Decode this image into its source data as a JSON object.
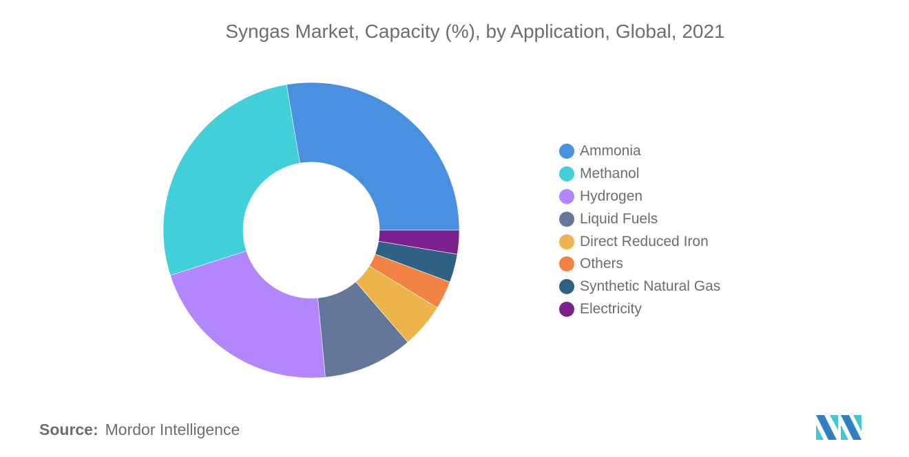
{
  "title": "Syngas Market, Capacity (%), by Application, Global, 2021",
  "source": {
    "label": "Source:",
    "value": "Mordor Intelligence"
  },
  "chart_data": {
    "type": "pie",
    "subtype": "donut",
    "title": "Syngas Market, Capacity (%), by Application, Global, 2021",
    "categories": [
      "Ammonia",
      "Methanol",
      "Hydrogen",
      "Liquid Fuels",
      "Direct Reduced Iron",
      "Others",
      "Synthetic Natural Gas",
      "Electricity"
    ],
    "values": [
      27.7,
      27.3,
      21.6,
      9.8,
      4.9,
      3.1,
      3.1,
      2.6
    ],
    "colors": [
      "#4a90e0",
      "#41d0da",
      "#b286fc",
      "#64779b",
      "#ecb44b",
      "#f28343",
      "#2e6184",
      "#7e1f8e"
    ],
    "legend_position": "right",
    "unit": "%"
  },
  "legend": {
    "items": [
      {
        "label": "Ammonia",
        "color": "#4a90e0"
      },
      {
        "label": "Methanol",
        "color": "#41d0da"
      },
      {
        "label": "Hydrogen",
        "color": "#b286fc"
      },
      {
        "label": "Liquid Fuels",
        "color": "#64779b"
      },
      {
        "label": "Direct Reduced Iron",
        "color": "#ecb44b"
      },
      {
        "label": "Others",
        "color": "#f28343"
      },
      {
        "label": "Synthetic Natural Gas",
        "color": "#2e6184"
      },
      {
        "label": "Electricity",
        "color": "#7e1f8e"
      }
    ]
  }
}
